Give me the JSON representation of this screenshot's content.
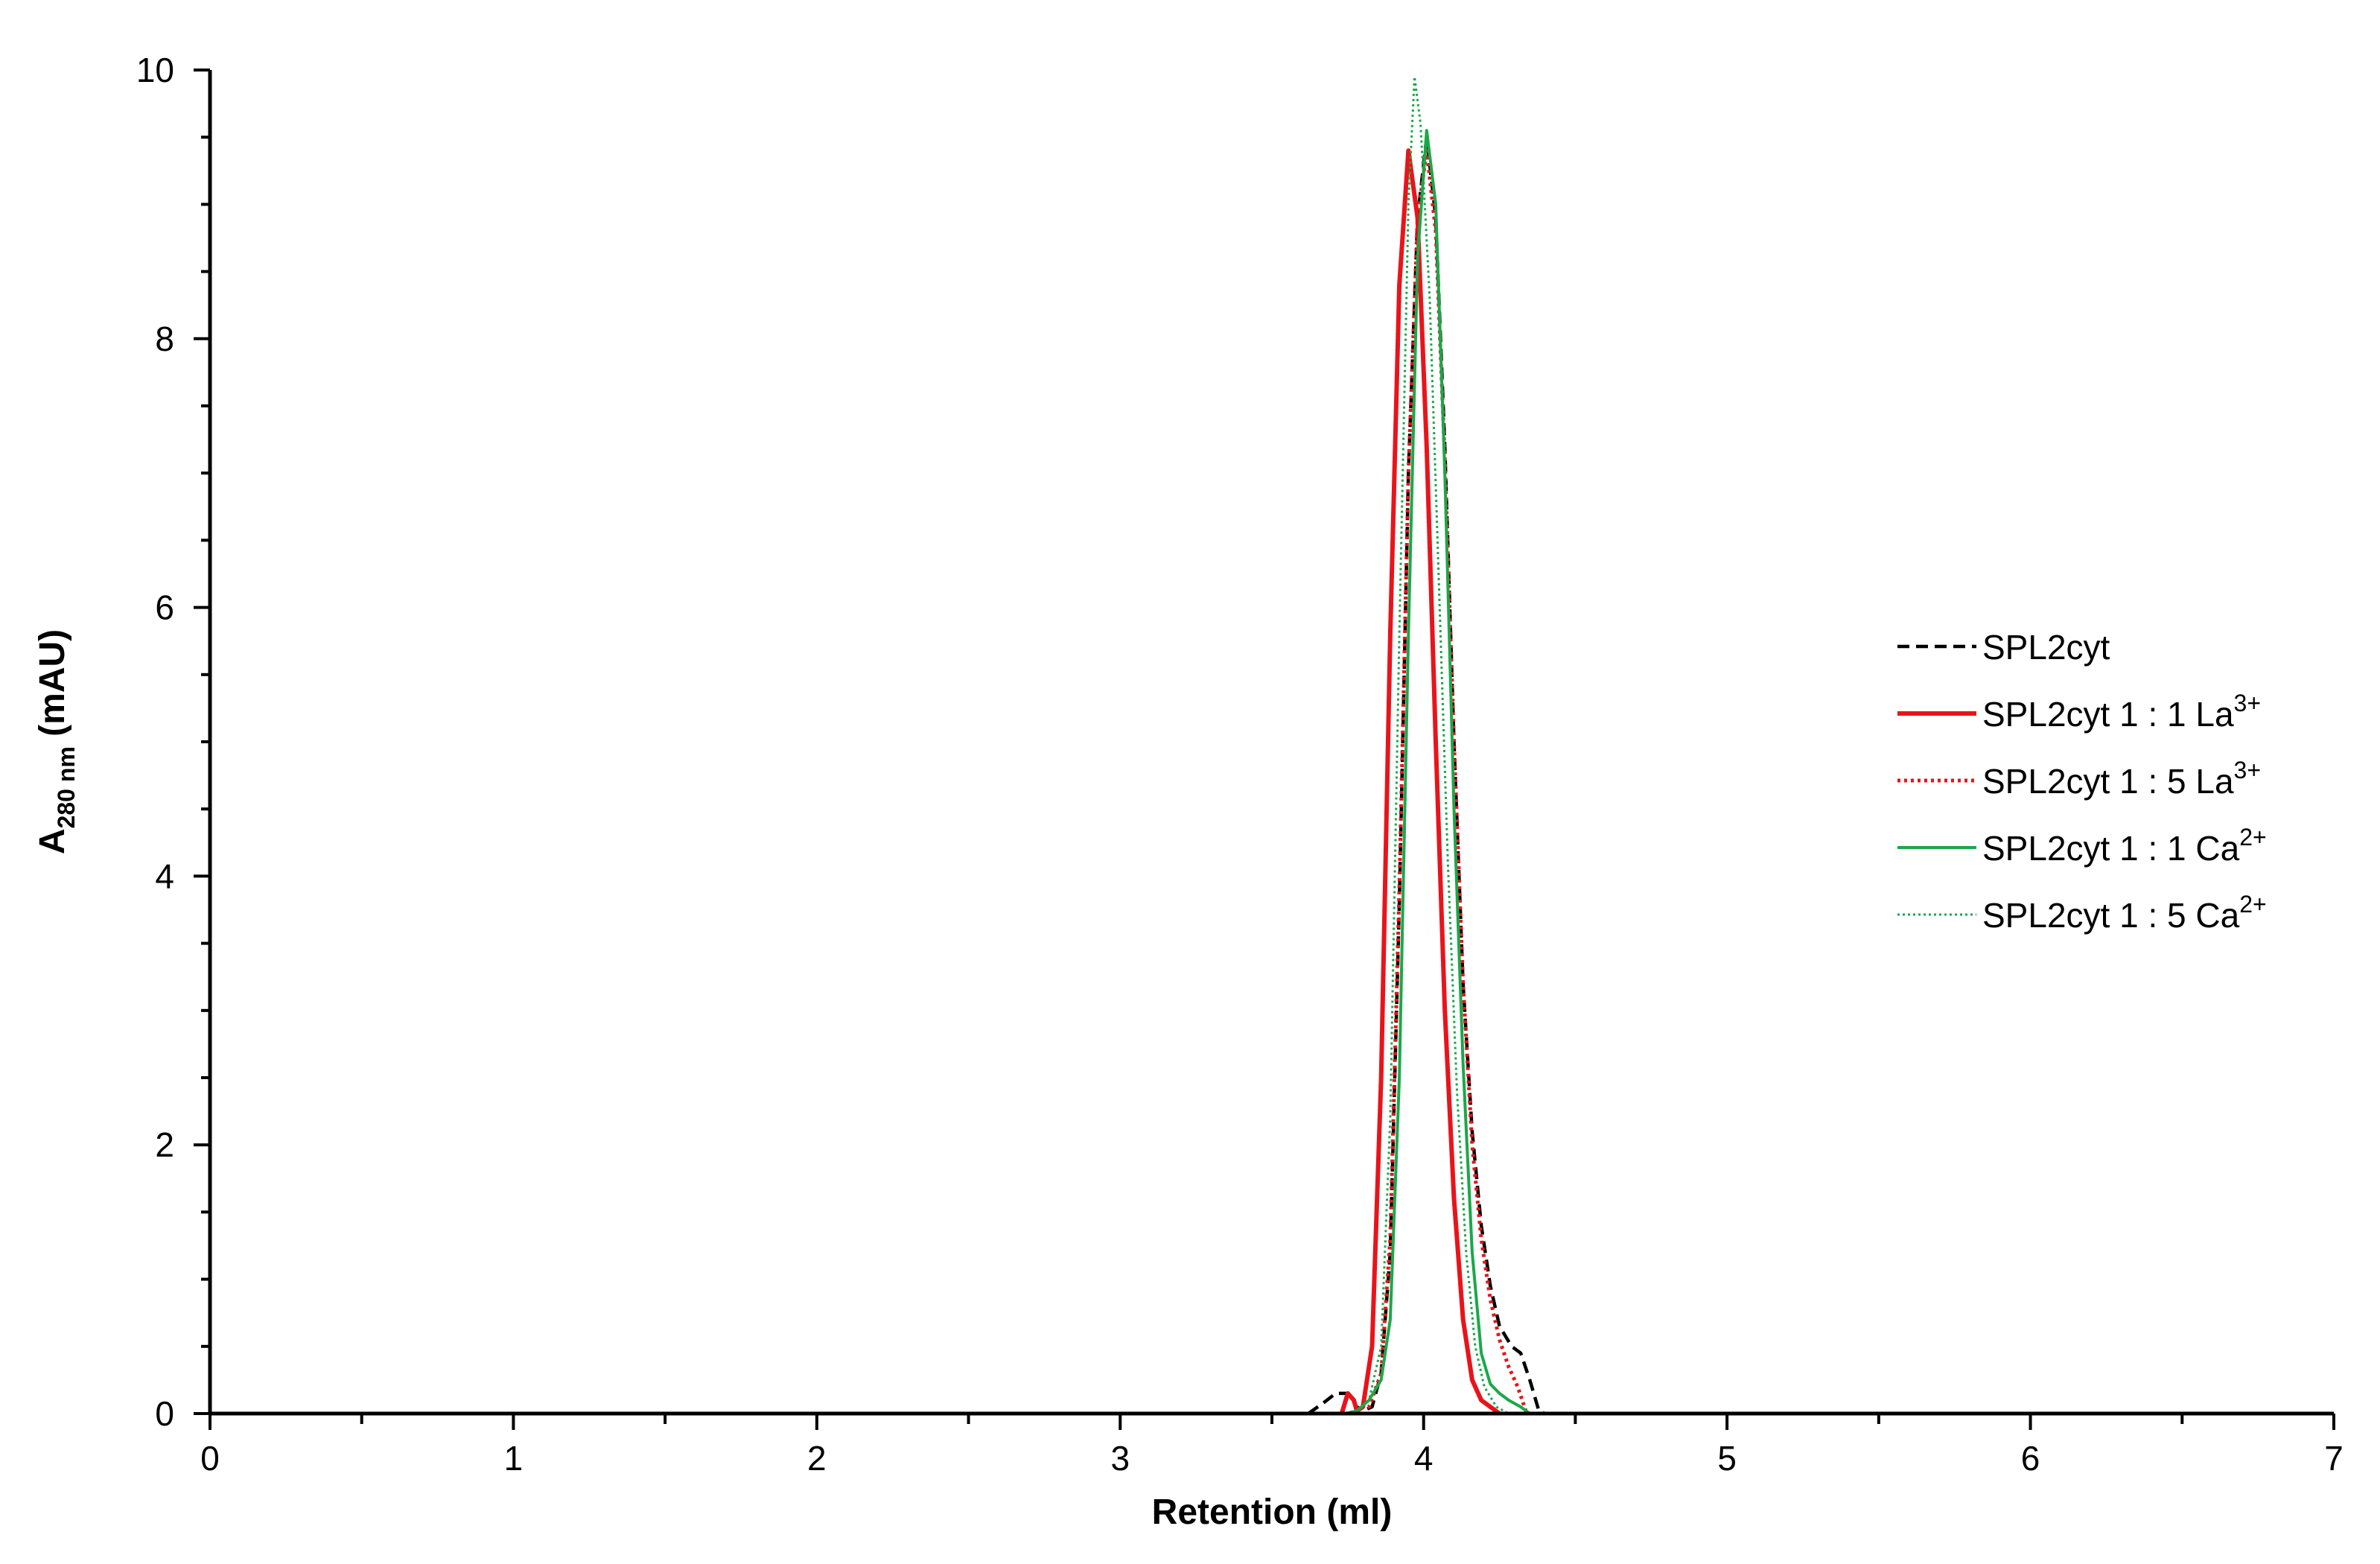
{
  "chart_data": {
    "type": "line",
    "title": "",
    "xlabel": "Retention (ml)",
    "ylabel": {
      "main": "A",
      "sub": "280 nm",
      "unit": " (mAU)"
    },
    "xlim": [
      0,
      7
    ],
    "ylim": [
      0,
      10
    ],
    "xticks": [
      0,
      1,
      2,
      3,
      4,
      5,
      6,
      7
    ],
    "yticks": [
      0,
      2,
      4,
      6,
      8,
      10
    ],
    "xtick_labels": [
      "0",
      "1",
      "2",
      "3",
      "4",
      "5",
      "6",
      "7"
    ],
    "ytick_labels": [
      "0",
      "2",
      "4",
      "6",
      "8",
      "10"
    ],
    "grid": false,
    "legend_position": "right",
    "series": [
      {
        "name": "SPL2cyt",
        "label": {
          "text": "SPL2cyt",
          "sup": ""
        },
        "color": "#000000",
        "style": "dashed",
        "points": [
          [
            3.62,
            0
          ],
          [
            3.67,
            0.08
          ],
          [
            3.71,
            0.15
          ],
          [
            3.75,
            0.15
          ],
          [
            3.78,
            0.05
          ],
          [
            3.8,
            0.02
          ],
          [
            3.83,
            0.05
          ],
          [
            3.86,
            0.3
          ],
          [
            3.89,
            1.2
          ],
          [
            3.92,
            3.8
          ],
          [
            3.95,
            7.0
          ],
          [
            3.98,
            8.9
          ],
          [
            4.01,
            9.5
          ],
          [
            4.04,
            8.9
          ],
          [
            4.07,
            7.2
          ],
          [
            4.1,
            5.0
          ],
          [
            4.13,
            3.2
          ],
          [
            4.16,
            2.1
          ],
          [
            4.19,
            1.4
          ],
          [
            4.22,
            0.95
          ],
          [
            4.25,
            0.65
          ],
          [
            4.29,
            0.5
          ],
          [
            4.32,
            0.45
          ],
          [
            4.35,
            0.25
          ],
          [
            4.38,
            0.02
          ],
          [
            4.4,
            0
          ]
        ]
      },
      {
        "name": "SPL2cyt 1 : 1 La3+",
        "label": {
          "text": "SPL2cyt 1 : 1 La",
          "sup": "3+"
        },
        "color": "#e8141b",
        "style": "solid",
        "points": [
          [
            3.73,
            0
          ],
          [
            3.75,
            0.15
          ],
          [
            3.77,
            0.1
          ],
          [
            3.78,
            0.02
          ],
          [
            3.8,
            0.05
          ],
          [
            3.83,
            0.5
          ],
          [
            3.86,
            2.5
          ],
          [
            3.89,
            5.8
          ],
          [
            3.92,
            8.4
          ],
          [
            3.95,
            9.4
          ],
          [
            3.98,
            8.9
          ],
          [
            4.01,
            7.2
          ],
          [
            4.04,
            5.0
          ],
          [
            4.07,
            3.0
          ],
          [
            4.1,
            1.6
          ],
          [
            4.13,
            0.7
          ],
          [
            4.16,
            0.25
          ],
          [
            4.19,
            0.1
          ],
          [
            4.22,
            0.05
          ],
          [
            4.25,
            0
          ]
        ]
      },
      {
        "name": "SPL2cyt 1 : 5 La3+",
        "label": {
          "text": "SPL2cyt 1 : 5 La",
          "sup": "3+"
        },
        "color": "#e8141b",
        "style": "dotted",
        "points": [
          [
            3.76,
            0
          ],
          [
            3.78,
            0.05
          ],
          [
            3.82,
            0.05
          ],
          [
            3.86,
            0.3
          ],
          [
            3.89,
            1.3
          ],
          [
            3.92,
            3.9
          ],
          [
            3.95,
            7.0
          ],
          [
            3.98,
            8.9
          ],
          [
            4.01,
            9.4
          ],
          [
            4.04,
            8.8
          ],
          [
            4.07,
            7.1
          ],
          [
            4.1,
            5.0
          ],
          [
            4.13,
            3.2
          ],
          [
            4.16,
            2.0
          ],
          [
            4.19,
            1.3
          ],
          [
            4.22,
            0.85
          ],
          [
            4.25,
            0.55
          ],
          [
            4.28,
            0.35
          ],
          [
            4.31,
            0.2
          ],
          [
            4.34,
            0
          ]
        ]
      },
      {
        "name": "SPL2cyt 1 : 1 Ca2+",
        "label": {
          "text": "SPL2cyt 1 : 1 Ca",
          "sup": "2+"
        },
        "color": "#1aa84a",
        "style": "solid",
        "points": [
          [
            3.74,
            0
          ],
          [
            3.78,
            0.02
          ],
          [
            3.82,
            0.1
          ],
          [
            3.86,
            0.25
          ],
          [
            3.89,
            0.7
          ],
          [
            3.92,
            2.5
          ],
          [
            3.95,
            5.8
          ],
          [
            3.98,
            8.6
          ],
          [
            4.01,
            9.55
          ],
          [
            4.04,
            9.0
          ],
          [
            4.07,
            7.0
          ],
          [
            4.1,
            4.5
          ],
          [
            4.13,
            2.6
          ],
          [
            4.16,
            1.2
          ],
          [
            4.19,
            0.45
          ],
          [
            4.22,
            0.22
          ],
          [
            4.25,
            0.15
          ],
          [
            4.28,
            0.1
          ],
          [
            4.32,
            0.05
          ],
          [
            4.35,
            0
          ]
        ]
      },
      {
        "name": "SPL2cyt 1 : 5 Ca2+",
        "label": {
          "text": "SPL2cyt 1 : 5 Ca",
          "sup": "2+"
        },
        "color": "#1aa84a",
        "style": "dotted-fine",
        "points": [
          [
            3.74,
            0
          ],
          [
            3.78,
            0.02
          ],
          [
            3.82,
            0.1
          ],
          [
            3.86,
            0.5
          ],
          [
            3.89,
            2.2
          ],
          [
            3.92,
            5.8
          ],
          [
            3.95,
            9.0
          ],
          [
            3.97,
            9.95
          ],
          [
            3.99,
            9.6
          ],
          [
            4.02,
            8.3
          ],
          [
            4.05,
            6.2
          ],
          [
            4.08,
            4.1
          ],
          [
            4.11,
            2.4
          ],
          [
            4.14,
            1.2
          ],
          [
            4.17,
            0.5
          ],
          [
            4.2,
            0.2
          ],
          [
            4.24,
            0.05
          ],
          [
            4.28,
            0
          ]
        ]
      }
    ]
  }
}
